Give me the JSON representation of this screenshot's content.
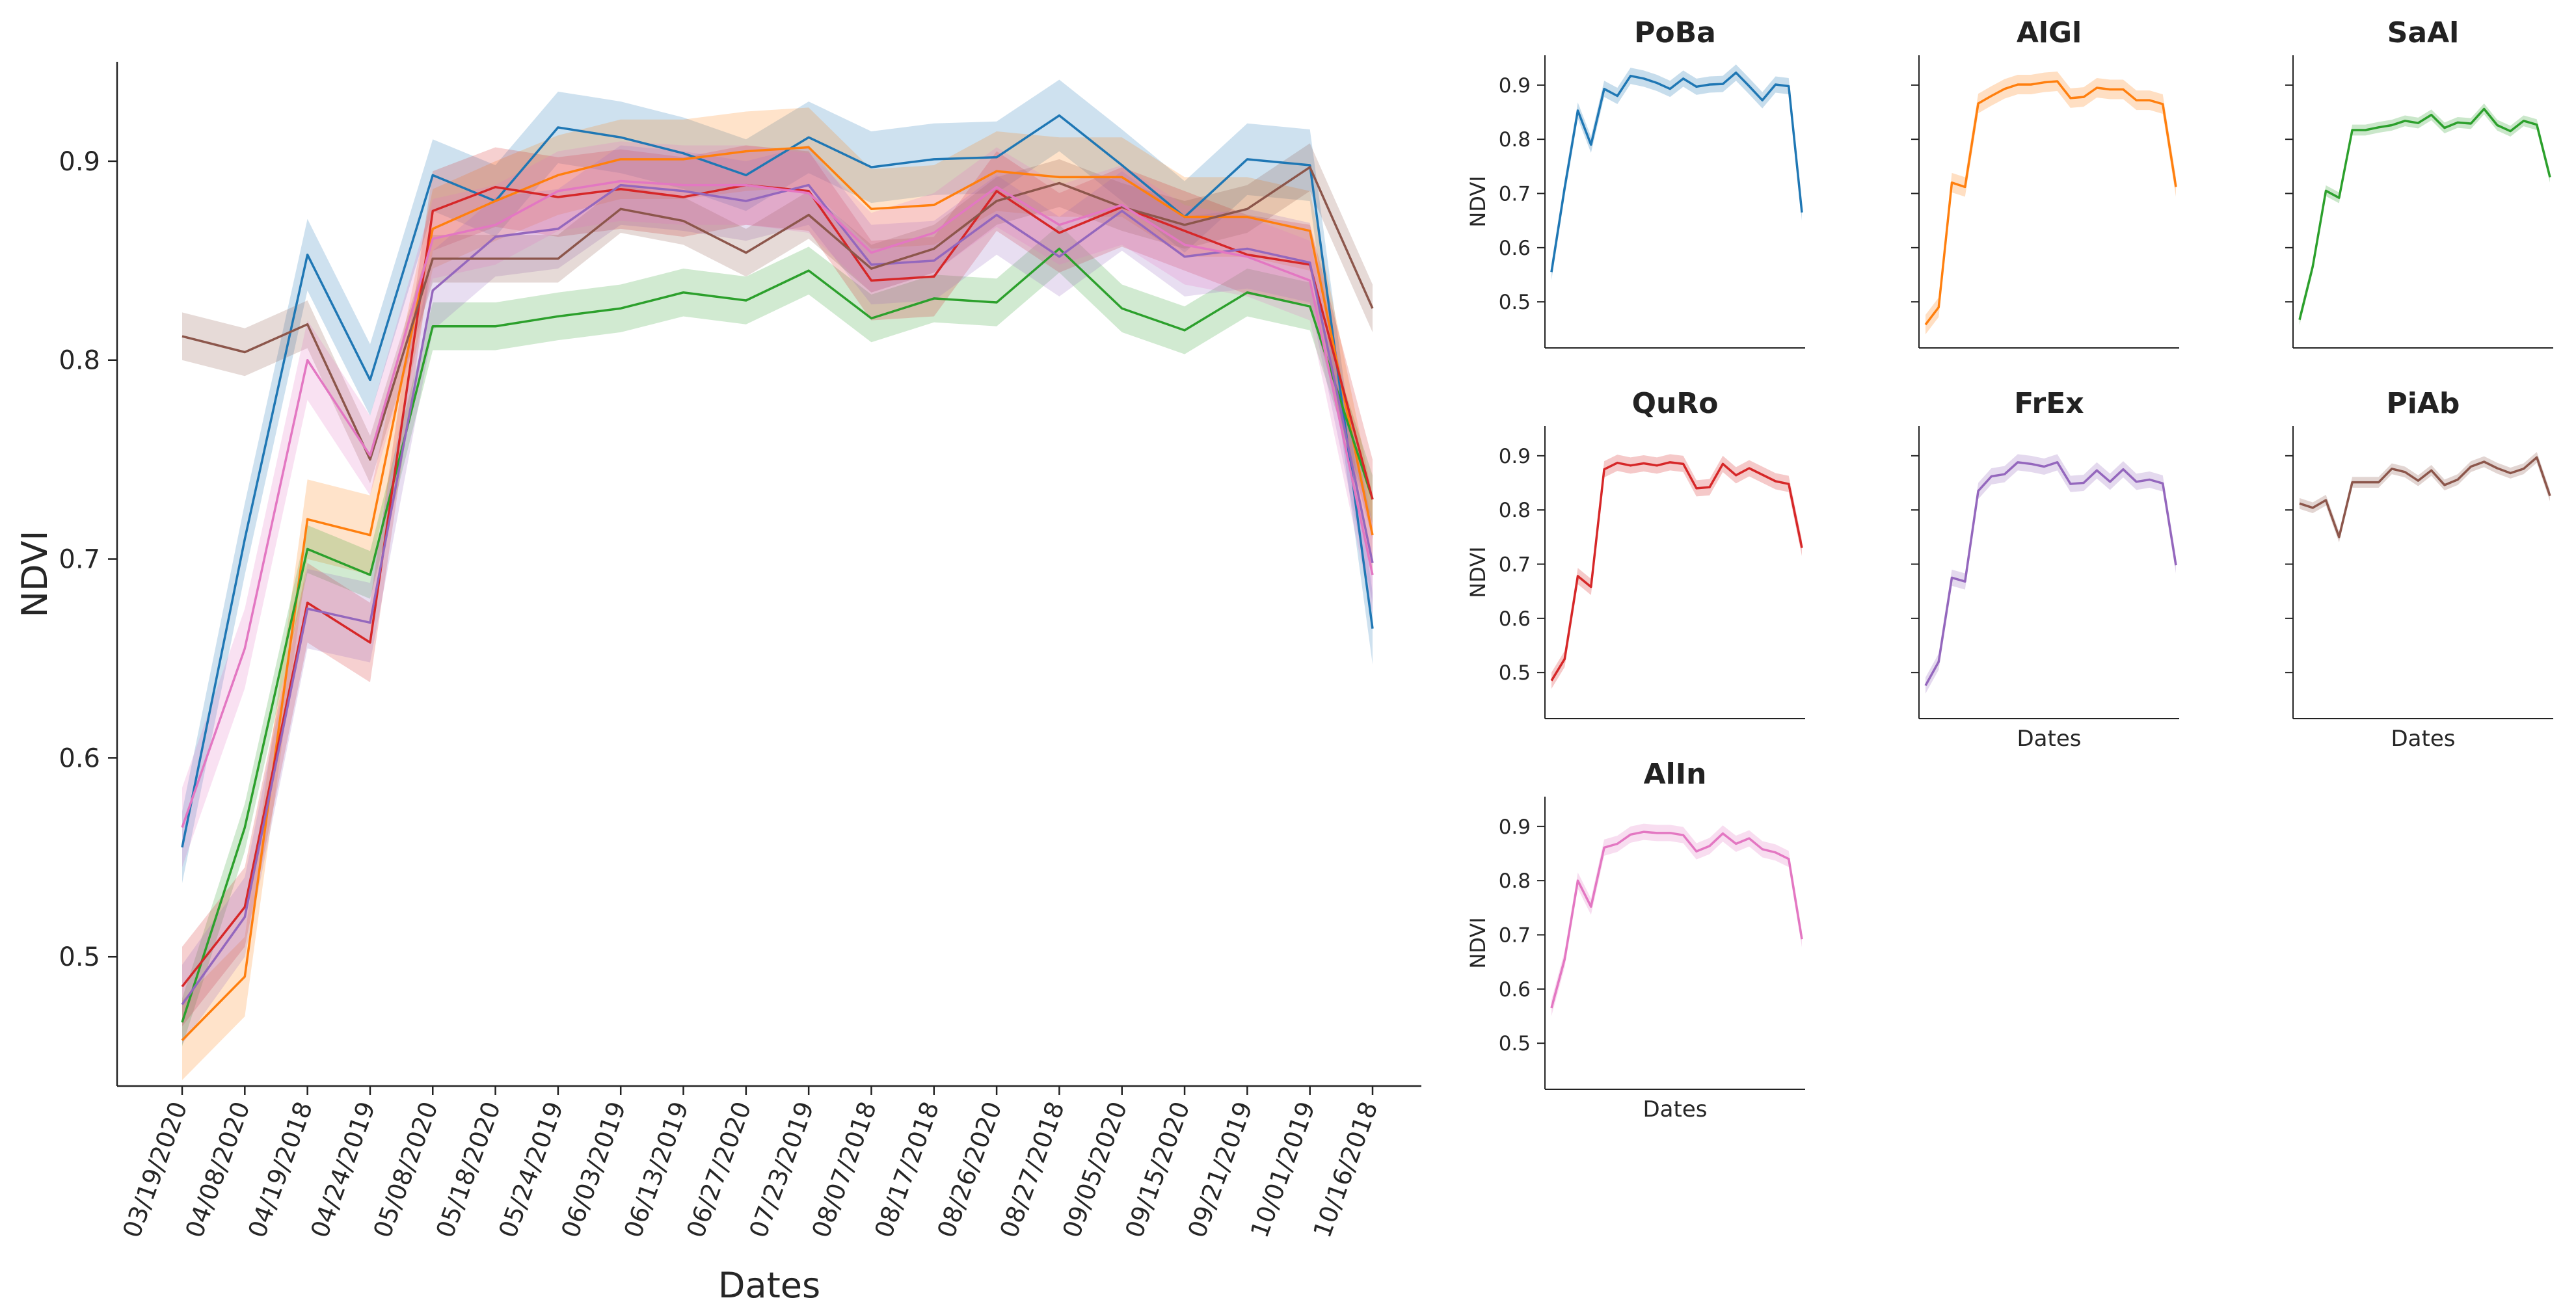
{
  "chart_data": [
    {
      "type": "line",
      "panel": "main",
      "title": "",
      "xlabel": "Dates",
      "ylabel": "NDVI",
      "ylim": [
        0.435,
        0.95
      ],
      "yticks": [
        0.5,
        0.6,
        0.7,
        0.8,
        0.9
      ],
      "ytick_labels": [
        "0.5",
        "0.6",
        "0.7",
        "0.8",
        "0.9"
      ],
      "categories": [
        "03/19/2020",
        "04/08/2020",
        "04/19/2018",
        "04/24/2019",
        "05/08/2020",
        "05/18/2020",
        "05/24/2019",
        "06/03/2019",
        "06/13/2019",
        "06/27/2020",
        "07/23/2019",
        "08/07/2018",
        "08/17/2018",
        "08/26/2020",
        "08/27/2018",
        "09/05/2020",
        "09/15/2020",
        "09/21/2019",
        "10/01/2019",
        "10/16/2018"
      ],
      "series": [
        {
          "name": "PoBa",
          "color": "#1f77b4",
          "values": [
            0.555,
            0.71,
            0.853,
            0.79,
            0.893,
            0.88,
            0.917,
            0.912,
            0.904,
            0.893,
            0.912,
            0.897,
            0.901,
            0.902,
            0.923,
            0.898,
            0.872,
            0.901,
            0.898,
            0.665
          ],
          "ci": 0.018
        },
        {
          "name": "AlGl",
          "color": "#ff7f0e",
          "values": [
            0.458,
            0.49,
            0.72,
            0.712,
            0.866,
            0.88,
            0.893,
            0.901,
            0.901,
            0.905,
            0.907,
            0.876,
            0.878,
            0.895,
            0.892,
            0.892,
            0.872,
            0.872,
            0.865,
            0.712
          ],
          "ci": 0.02
        },
        {
          "name": "SaAl",
          "color": "#2ca02c",
          "values": [
            0.467,
            0.565,
            0.705,
            0.692,
            0.817,
            0.817,
            0.822,
            0.826,
            0.834,
            0.83,
            0.845,
            0.821,
            0.831,
            0.829,
            0.856,
            0.826,
            0.815,
            0.834,
            0.827,
            0.73
          ],
          "ci": 0.012
        },
        {
          "name": "QuRo",
          "color": "#d62728",
          "values": [
            0.485,
            0.525,
            0.678,
            0.658,
            0.875,
            0.887,
            0.882,
            0.886,
            0.882,
            0.888,
            0.885,
            0.84,
            0.842,
            0.885,
            0.864,
            0.877,
            0.865,
            0.853,
            0.848,
            0.73
          ],
          "ci": 0.02
        },
        {
          "name": "FrEx",
          "color": "#9467bd",
          "values": [
            0.476,
            0.52,
            0.675,
            0.668,
            0.835,
            0.862,
            0.866,
            0.888,
            0.885,
            0.88,
            0.888,
            0.848,
            0.85,
            0.873,
            0.852,
            0.875,
            0.852,
            0.856,
            0.849,
            0.698
          ],
          "ci": 0.02
        },
        {
          "name": "PiAb",
          "color": "#8c564b",
          "values": [
            0.812,
            0.804,
            0.818,
            0.75,
            0.851,
            0.851,
            0.851,
            0.876,
            0.87,
            0.854,
            0.873,
            0.846,
            0.856,
            0.88,
            0.889,
            0.877,
            0.868,
            0.876,
            0.897,
            0.826
          ],
          "ci": 0.012
        },
        {
          "name": "AlIn",
          "color": "#e377c2",
          "values": [
            0.565,
            0.655,
            0.8,
            0.752,
            0.861,
            0.868,
            0.885,
            0.89,
            0.888,
            0.888,
            0.884,
            0.854,
            0.864,
            0.887,
            0.868,
            0.878,
            0.858,
            0.852,
            0.84,
            0.692
          ],
          "ci": 0.02
        }
      ]
    },
    {
      "type": "line",
      "panel": "small",
      "title": "PoBa",
      "ylabel": "NDVI",
      "xlabel": "",
      "color": "#1f77b4",
      "ylim": [
        0.415,
        0.955
      ],
      "yticks": [
        0.5,
        0.6,
        0.7,
        0.8,
        0.9
      ],
      "ytick_labels": [
        "0.5",
        "0.6",
        "0.7",
        "0.8",
        "0.9"
      ],
      "ci": 0.015,
      "values": [
        0.555,
        0.71,
        0.853,
        0.79,
        0.893,
        0.88,
        0.917,
        0.912,
        0.904,
        0.893,
        0.912,
        0.897,
        0.901,
        0.902,
        0.923,
        0.898,
        0.872,
        0.901,
        0.898,
        0.665
      ]
    },
    {
      "type": "line",
      "panel": "small",
      "title": "AlGl",
      "ylabel": "",
      "xlabel": "",
      "color": "#ff7f0e",
      "ylim": [
        0.415,
        0.955
      ],
      "yticks": [
        0.5,
        0.6,
        0.7,
        0.8,
        0.9
      ],
      "ytick_labels": [
        "",
        "",
        "",
        "",
        ""
      ],
      "ci": 0.018,
      "values": [
        0.458,
        0.49,
        0.72,
        0.712,
        0.866,
        0.88,
        0.893,
        0.901,
        0.901,
        0.905,
        0.907,
        0.876,
        0.878,
        0.895,
        0.892,
        0.892,
        0.872,
        0.872,
        0.865,
        0.712
      ]
    },
    {
      "type": "line",
      "panel": "small",
      "title": "SaAl",
      "ylabel": "",
      "xlabel": "",
      "color": "#2ca02c",
      "ylim": [
        0.415,
        0.955
      ],
      "yticks": [
        0.5,
        0.6,
        0.7,
        0.8,
        0.9
      ],
      "ytick_labels": [
        "",
        "",
        "",
        "",
        ""
      ],
      "ci": 0.01,
      "values": [
        0.467,
        0.565,
        0.705,
        0.692,
        0.817,
        0.817,
        0.822,
        0.826,
        0.834,
        0.83,
        0.845,
        0.821,
        0.831,
        0.829,
        0.856,
        0.826,
        0.815,
        0.834,
        0.827,
        0.73
      ]
    },
    {
      "type": "line",
      "panel": "small",
      "title": "QuRo",
      "ylabel": "NDVI",
      "xlabel": "",
      "color": "#d62728",
      "ylim": [
        0.415,
        0.955
      ],
      "yticks": [
        0.5,
        0.6,
        0.7,
        0.8,
        0.9
      ],
      "ytick_labels": [
        "0.5",
        "0.6",
        "0.7",
        "0.8",
        "0.9"
      ],
      "ci": 0.015,
      "values": [
        0.485,
        0.525,
        0.678,
        0.658,
        0.875,
        0.887,
        0.882,
        0.886,
        0.882,
        0.888,
        0.885,
        0.84,
        0.842,
        0.885,
        0.864,
        0.877,
        0.865,
        0.853,
        0.848,
        0.73
      ]
    },
    {
      "type": "line",
      "panel": "small",
      "title": "FrEx",
      "ylabel": "",
      "xlabel": "Dates",
      "color": "#9467bd",
      "ylim": [
        0.415,
        0.955
      ],
      "yticks": [
        0.5,
        0.6,
        0.7,
        0.8,
        0.9
      ],
      "ytick_labels": [
        "",
        "",
        "",
        "",
        ""
      ],
      "ci": 0.015,
      "values": [
        0.476,
        0.52,
        0.675,
        0.668,
        0.835,
        0.862,
        0.866,
        0.888,
        0.885,
        0.88,
        0.888,
        0.848,
        0.85,
        0.873,
        0.852,
        0.875,
        0.852,
        0.856,
        0.849,
        0.698
      ]
    },
    {
      "type": "line",
      "panel": "small",
      "title": "PiAb",
      "ylabel": "",
      "xlabel": "Dates",
      "color": "#8c564b",
      "ylim": [
        0.415,
        0.955
      ],
      "yticks": [
        0.5,
        0.6,
        0.7,
        0.8,
        0.9
      ],
      "ytick_labels": [
        "",
        "",
        "",
        "",
        ""
      ],
      "ci": 0.01,
      "values": [
        0.812,
        0.804,
        0.818,
        0.75,
        0.851,
        0.851,
        0.851,
        0.876,
        0.87,
        0.854,
        0.873,
        0.846,
        0.856,
        0.88,
        0.889,
        0.877,
        0.868,
        0.876,
        0.897,
        0.826
      ]
    },
    {
      "type": "line",
      "panel": "small",
      "title": "AlIn",
      "ylabel": "NDVI",
      "xlabel": "Dates",
      "color": "#e377c2",
      "ylim": [
        0.415,
        0.955
      ],
      "yticks": [
        0.5,
        0.6,
        0.7,
        0.8,
        0.9
      ],
      "ytick_labels": [
        "0.5",
        "0.6",
        "0.7",
        "0.8",
        "0.9"
      ],
      "ci": 0.015,
      "values": [
        0.565,
        0.655,
        0.8,
        0.752,
        0.861,
        0.868,
        0.885,
        0.89,
        0.888,
        0.888,
        0.884,
        0.854,
        0.864,
        0.887,
        0.868,
        0.878,
        0.858,
        0.852,
        0.84,
        0.692
      ]
    }
  ]
}
